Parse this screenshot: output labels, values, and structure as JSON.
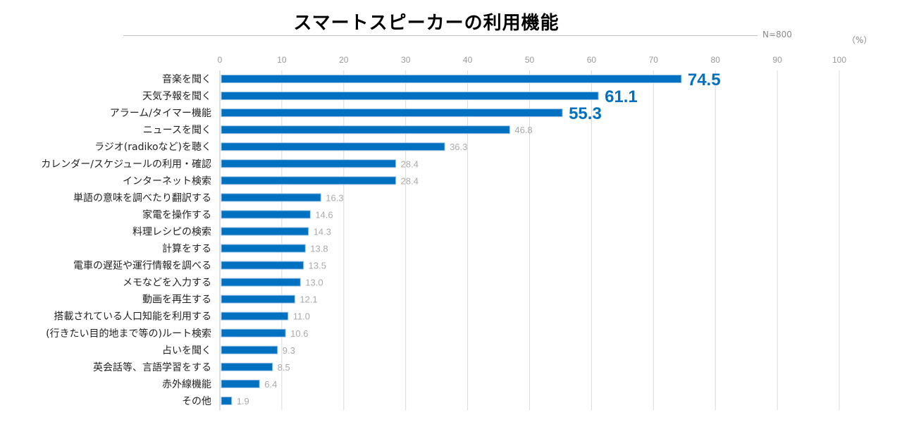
{
  "chart_data": {
    "type": "bar",
    "orientation": "horizontal",
    "title": "スマートスピーカーの利用機能",
    "note": "N=800",
    "unit": "（%）",
    "xlim": [
      0,
      100
    ],
    "ticks": [
      0,
      10,
      20,
      30,
      40,
      50,
      60,
      70,
      80,
      90,
      100
    ],
    "grid": true,
    "bar_color": "#0070C0",
    "highlight_label_color": "#0070C0",
    "highlight_top_n": 3,
    "categories": [
      "音楽を聞く",
      "天気予報を聞く",
      "アラーム/タイマー機能",
      "ニュースを聞く",
      "ラジオ(radikoなど)を聴く",
      "カレンダー/スケジュールの利用・確認",
      "インターネット検索",
      "単語の意味を調べたり翻訳する",
      "家電を操作する",
      "料理レシピの検索",
      "計算をする",
      "電車の遅延や運行情報を調べる",
      "メモなどを入力する",
      "動画を再生する",
      "搭載されている人口知能を利用する",
      "(行きたい目的地まで等の)ルート検索",
      "占いを聞く",
      "英会話等、言語学習をする",
      "赤外線機能",
      "その他"
    ],
    "values": [
      74.5,
      61.1,
      55.3,
      46.8,
      36.3,
      28.4,
      28.4,
      16.3,
      14.6,
      14.3,
      13.8,
      13.5,
      13.0,
      12.1,
      11.0,
      10.6,
      9.3,
      8.5,
      6.4,
      1.9
    ]
  }
}
